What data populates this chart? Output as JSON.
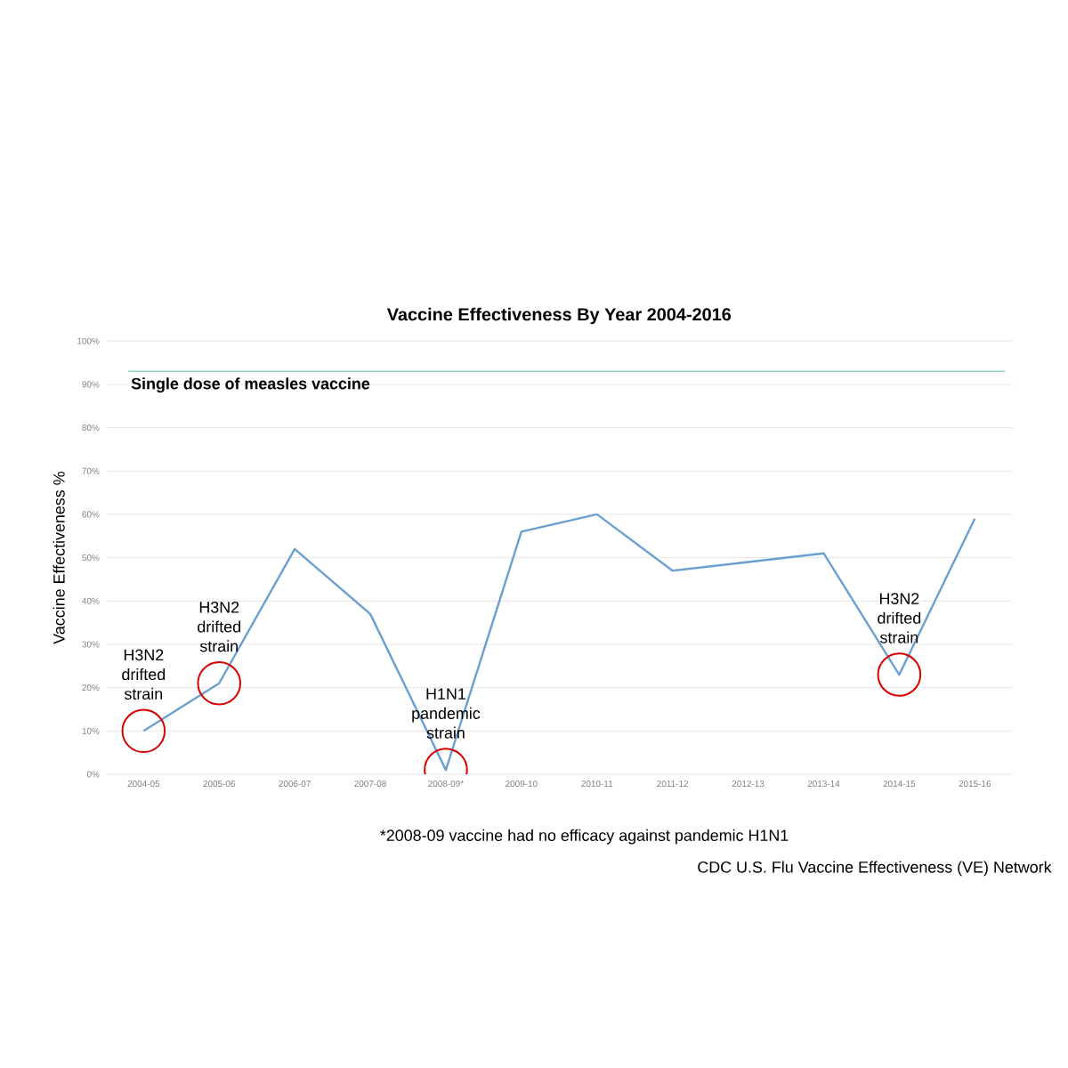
{
  "chart_data": {
    "type": "line",
    "title": "Vaccine Effectiveness By Year 2004-2016",
    "ylabel": "Vaccine Effectiveness %",
    "categories": [
      "2004-05",
      "2005-06",
      "2006-07",
      "2007-08",
      "2008-09*",
      "2009-10",
      "2010-11",
      "2011-12",
      "2012-13",
      "2013-14",
      "2014-15",
      "2015-16"
    ],
    "series": [
      {
        "color": "#6a9fcf",
        "values": [
          10,
          21,
          52,
          37,
          1,
          56,
          60,
          47,
          49,
          51,
          23,
          59
        ]
      }
    ],
    "ylim": [
      0,
      100
    ],
    "yticks": [
      {
        "value": 0,
        "label": "0%"
      },
      {
        "value": 10,
        "label": "10%"
      },
      {
        "value": 20,
        "label": "20%"
      },
      {
        "value": 30,
        "label": "30%"
      },
      {
        "value": 40,
        "label": "40%"
      },
      {
        "value": 50,
        "label": "50%"
      },
      {
        "value": 60,
        "label": "60%"
      },
      {
        "value": 70,
        "label": "70%"
      },
      {
        "value": 80,
        "label": "80%"
      },
      {
        "value": 90,
        "label": "90%"
      },
      {
        "value": 100,
        "label": "100%"
      }
    ],
    "grid": "y",
    "marker": "none",
    "line_style": "solid",
    "ref_lines": [
      {
        "axis": "y",
        "value": 93,
        "label": "Single dose of measles vaccine",
        "color": "#8fd3b4"
      }
    ],
    "annotations": [
      {
        "text": "H3N2 drifted strain",
        "x": "2004-05",
        "y": 10
      },
      {
        "text": "H3N2 drifted strain",
        "x": "2005-06",
        "y": 21
      },
      {
        "text": "H1N1 pandemic strain",
        "x": "2008-09*",
        "y": 1
      },
      {
        "text": "H3N2 drifted strain",
        "x": "2014-15",
        "y": 23
      },
      "*2008-09 vaccine had no efficacy against pandemic H1N1",
      "CDC U.S. Flu Vaccine Effectiveness (VE) Network"
    ]
  }
}
